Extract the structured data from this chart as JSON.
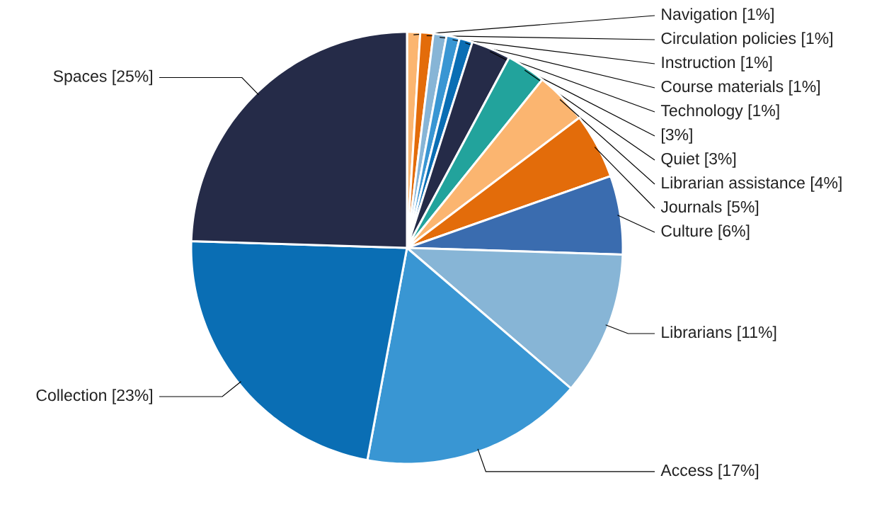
{
  "chart_data": {
    "type": "pie",
    "categories": [
      "Navigation",
      "Circulation policies",
      "Instruction",
      "Course materials",
      "Technology",
      null,
      "Quiet",
      "Librarian assistance",
      "Journals",
      "Culture",
      "Librarians",
      "Access",
      "Collection",
      "Spaces"
    ],
    "values": [
      1,
      1,
      1,
      1,
      1,
      3,
      3,
      4,
      5,
      6,
      11,
      17,
      23,
      25
    ],
    "value_labels": [
      "[1%]",
      "[1%]",
      "[1%]",
      "[1%]",
      "[1%]",
      "[3%]",
      "[3%]",
      "[4%]",
      "[5%]",
      "[6%]",
      "[11%]",
      "[17%]",
      "[23%]",
      "[25%]"
    ],
    "colors": [
      "#fbb570",
      "#e36c0a",
      "#87b5d6",
      "#3996d3",
      "#0a6eb4",
      "#252b48",
      "#22a39c",
      "#fbb570",
      "#e36c0a",
      "#3a6caf",
      "#87b5d6",
      "#3996d3",
      "#0a6eb4",
      "#252b48"
    ]
  }
}
